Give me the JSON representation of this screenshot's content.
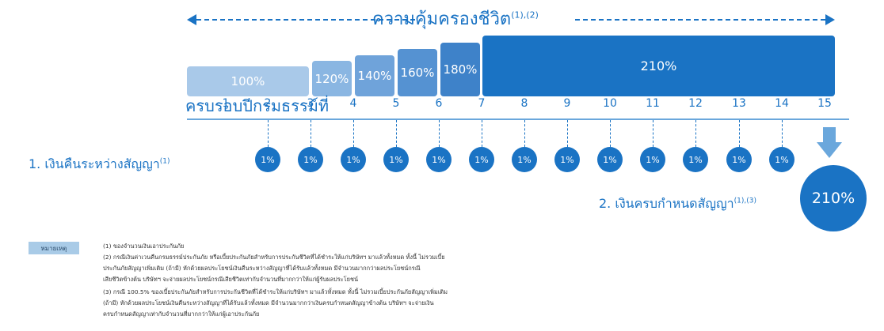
{
  "title": "ความคุ้มครองชีวิต",
  "title_sup": "(1),(2)",
  "row_label": "ครบรอบปีกรมธรรม์ที่",
  "years": [
    "1",
    "2",
    "3",
    "4",
    "5",
    "6",
    "7",
    "8",
    "9",
    "10",
    "11",
    "12",
    "13",
    "14",
    "15"
  ],
  "coverage_steps": [
    {
      "label": "100%",
      "value": 100,
      "years": "1-3",
      "color": "#a9c9e9"
    },
    {
      "label": "120%",
      "value": 120,
      "years": "3-4",
      "color": "#8ab6e2"
    },
    {
      "label": "140%",
      "value": 140,
      "years": "4-5",
      "color": "#6fa3da"
    },
    {
      "label": "160%",
      "value": 160,
      "years": "5-6",
      "color": "#5592d2"
    },
    {
      "label": "180%",
      "value": 180,
      "years": "6-7",
      "color": "#3e82c9"
    },
    {
      "label": "210%",
      "value": 210,
      "years": "7-15",
      "color": "#1a73c4"
    }
  ],
  "rebate": {
    "label": "1.  เงินคืนระหว่างสัญญา",
    "label_sup": "(1)",
    "value": "1%",
    "years": [
      2,
      3,
      4,
      5,
      6,
      7,
      8,
      9,
      10,
      11,
      12,
      13,
      14
    ]
  },
  "maturity": {
    "label": "2.  เงินครบกำหนดสัญญา",
    "label_sup": "(1),(3)",
    "value": "210%"
  },
  "notes": {
    "badge": "หมายเหตุ",
    "lines": [
      "(1)  ของจำนวนเงินเอาประกันภัย",
      "(2)  กรณีเงินค่าเวนคืนกรมธรรม์ประกันภัย  หรือเบี้ยประกันภัยสำหรับการประกันชีวิตที่ได้ชำระให้แก่บริษัทฯ  มาแล้วทั้งหมด  ทั้งนี้  ไม่รวมเบี้ย",
      "       ประกันภัยสัญญาเพิ่มเติม  (ถ้ามี)  หักด้วยผลประโยชน์เงินคืนระหว่างสัญญาที่ได้รับแล้วทั้งหมด  มีจำนวนมากกว่าผลประโยชน์กรณี",
      "       เสียชีวิตข้างต้น  บริษัทฯ  จะจ่ายผลประโยชน์กรณีเสียชีวิตเท่ากับจำนวนที่มากกว่าให้แก่ผู้รับผลประโยชน์",
      "(3)  กรณี  100.5%  ของเบี้ยประกันภัยสำหรับการประกันชีวิตที่ได้ชำระให้แก่บริษัทฯ  มาแล้วทั้งหมด  ทั้งนี้  ไม่รวมเบี้ยประกันภัยสัญญาเพิ่มเติม",
      "       (ถ้ามี)  หักด้วยผลประโยชน์เงินคืนระหว่างสัญญาที่ได้รับแล้วทั้งหมด  มีจำนวนมากกว่าเงินครบกำหนดสัญญาข้างต้น  บริษัทฯ  จะจ่ายเงิน",
      "       ครบกำหนดสัญญาเท่ากับจำนวนที่มากกว่าให้แก่ผู้เอาประกันภัย"
    ]
  }
}
